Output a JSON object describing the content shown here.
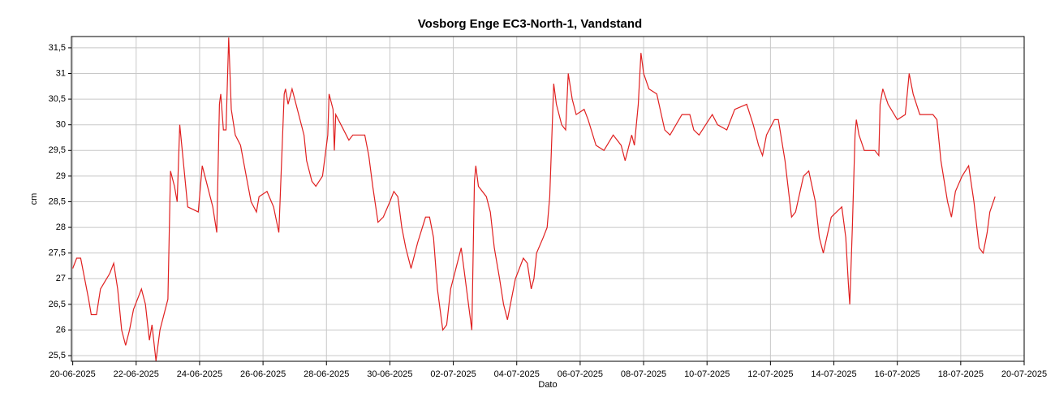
{
  "chart_data": {
    "type": "line",
    "title": "Vosborg Enge EC3-North-1, Vandstand",
    "x_label": "Dato",
    "y_label": "cm",
    "x": [
      "2025-06-20T00:00",
      "2025-06-20T03:00",
      "2025-06-20T06:00",
      "2025-06-20T12:00",
      "2025-06-20T14:00",
      "2025-06-20T18:00",
      "2025-06-20T21:00",
      "2025-06-21T04:00",
      "2025-06-21T07:00",
      "2025-06-21T10:00",
      "2025-06-21T13:00",
      "2025-06-21T16:00",
      "2025-06-21T19:00",
      "2025-06-21T22:00",
      "2025-06-22T04:00",
      "2025-06-22T07:00",
      "2025-06-22T10:00",
      "2025-06-22T12:00",
      "2025-06-22T15:00",
      "2025-06-22T18:00",
      "2025-06-23T00:00",
      "2025-06-23T02:00",
      "2025-06-23T05:00",
      "2025-06-23T07:00",
      "2025-06-23T09:00",
      "2025-06-23T12:00",
      "2025-06-23T15:00",
      "2025-06-23T23:00",
      "2025-06-24T02:00",
      "2025-06-24T05:00",
      "2025-06-24T10:00",
      "2025-06-24T13:00",
      "2025-06-24T15:00",
      "2025-06-24T16:00",
      "2025-06-24T18:00",
      "2025-06-24T20:00",
      "2025-06-24T22:00",
      "2025-06-25T00:00",
      "2025-06-25T03:00",
      "2025-06-25T07:00",
      "2025-06-25T12:00",
      "2025-06-25T15:00",
      "2025-06-25T19:00",
      "2025-06-25T21:00",
      "2025-06-26T03:00",
      "2025-06-26T08:00",
      "2025-06-26T12:00",
      "2025-06-26T16:00",
      "2025-06-26T17:00",
      "2025-06-26T19:00",
      "2025-06-26T22:00",
      "2025-06-27T04:00",
      "2025-06-27T07:00",
      "2025-06-27T09:00",
      "2025-06-27T13:00",
      "2025-06-27T16:00",
      "2025-06-27T21:00",
      "2025-06-28T01:00",
      "2025-06-28T02:00",
      "2025-06-28T05:00",
      "2025-06-28T06:00",
      "2025-06-28T07:00",
      "2025-06-28T11:00",
      "2025-06-28T17:00",
      "2025-06-28T20:00",
      "2025-06-29T05:00",
      "2025-06-29T08:00",
      "2025-06-29T11:00",
      "2025-06-29T15:00",
      "2025-06-29T19:00",
      "2025-06-30T00:00",
      "2025-06-30T03:00",
      "2025-06-30T06:00",
      "2025-06-30T09:00",
      "2025-06-30T12:00",
      "2025-06-30T16:00",
      "2025-06-30T21:00",
      "2025-07-01T03:00",
      "2025-07-01T06:00",
      "2025-07-01T09:00",
      "2025-07-01T12:00",
      "2025-07-01T16:00",
      "2025-07-01T19:00",
      "2025-07-01T22:00",
      "2025-07-02T01:00",
      "2025-07-02T06:00",
      "2025-07-02T08:00",
      "2025-07-02T12:00",
      "2025-07-02T14:00",
      "2025-07-02T16:00",
      "2025-07-02T17:00",
      "2025-07-02T19:00",
      "2025-07-03T01:00",
      "2025-07-03T04:00",
      "2025-07-03T07:00",
      "2025-07-03T11:00",
      "2025-07-03T14:00",
      "2025-07-03T17:00",
      "2025-07-03T20:00",
      "2025-07-03T23:00",
      "2025-07-04T05:00",
      "2025-07-04T08:00",
      "2025-07-04T11:00",
      "2025-07-04T13:00",
      "2025-07-04T15:00",
      "2025-07-04T20:00",
      "2025-07-04T23:00",
      "2025-07-05T01:00",
      "2025-07-05T04:00",
      "2025-07-05T06:00",
      "2025-07-05T10:00",
      "2025-07-05T13:00",
      "2025-07-05T15:00",
      "2025-07-05T18:00",
      "2025-07-05T21:00",
      "2025-07-06T03:00",
      "2025-07-06T06:00",
      "2025-07-06T12:00",
      "2025-07-06T18:00",
      "2025-07-07T01:00",
      "2025-07-07T07:00",
      "2025-07-07T10:00",
      "2025-07-07T15:00",
      "2025-07-07T17:00",
      "2025-07-07T20:00",
      "2025-07-07T22:00",
      "2025-07-08T00:00",
      "2025-07-08T04:00",
      "2025-07-08T10:00",
      "2025-07-08T16:00",
      "2025-07-08T20:00",
      "2025-07-09T05:00",
      "2025-07-09T11:00",
      "2025-07-09T14:00",
      "2025-07-09T18:00",
      "2025-07-10T04:00",
      "2025-07-10T08:00",
      "2025-07-10T15:00",
      "2025-07-10T21:00",
      "2025-07-11T06:00",
      "2025-07-11T11:00",
      "2025-07-11T15:00",
      "2025-07-11T18:00",
      "2025-07-11T21:00",
      "2025-07-12T03:00",
      "2025-07-12T06:00",
      "2025-07-12T11:00",
      "2025-07-12T16:00",
      "2025-07-12T19:00",
      "2025-07-13T01:00",
      "2025-07-13T05:00",
      "2025-07-13T10:00",
      "2025-07-13T13:00",
      "2025-07-13T16:00",
      "2025-07-13T22:00",
      "2025-07-14T06:00",
      "2025-07-14T09:00",
      "2025-07-14T11:00",
      "2025-07-14T12:00",
      "2025-07-14T14:00",
      "2025-07-14T16:00",
      "2025-07-14T17:00",
      "2025-07-14T19:00",
      "2025-07-14T23:00",
      "2025-07-15T07:00",
      "2025-07-15T10:00",
      "2025-07-15T11:00",
      "2025-07-15T13:00",
      "2025-07-15T17:00",
      "2025-07-16T00:00",
      "2025-07-16T06:00",
      "2025-07-16T09:00",
      "2025-07-16T12:00",
      "2025-07-16T17:00",
      "2025-07-17T03:00",
      "2025-07-17T06:00",
      "2025-07-17T09:00",
      "2025-07-17T14:00",
      "2025-07-17T17:00",
      "2025-07-17T20:00",
      "2025-07-18T01:00",
      "2025-07-18T06:00",
      "2025-07-18T10:00",
      "2025-07-18T14:00",
      "2025-07-18T17:00",
      "2025-07-18T20:00",
      "2025-07-18T22:00",
      "2025-07-19T02:00"
    ],
    "series": [
      {
        "name": "Vandstand",
        "color": "#e02020",
        "values": [
          27.2,
          27.4,
          27.4,
          26.6,
          26.3,
          26.3,
          26.8,
          27.1,
          27.3,
          26.8,
          26.0,
          25.7,
          26.0,
          26.4,
          26.8,
          26.5,
          25.8,
          26.1,
          25.4,
          26.0,
          26.6,
          29.1,
          28.8,
          28.5,
          30.0,
          29.2,
          28.4,
          28.3,
          29.2,
          28.9,
          28.4,
          27.9,
          30.4,
          30.6,
          29.9,
          29.9,
          31.7,
          30.3,
          29.8,
          29.6,
          28.9,
          28.5,
          28.3,
          28.6,
          28.7,
          28.4,
          27.9,
          30.6,
          30.7,
          30.4,
          30.7,
          30.1,
          29.8,
          29.3,
          28.9,
          28.8,
          29.0,
          29.8,
          30.6,
          30.3,
          29.5,
          30.2,
          30.0,
          29.7,
          29.8,
          29.8,
          29.4,
          28.8,
          28.1,
          28.2,
          28.5,
          28.7,
          28.6,
          28.0,
          27.6,
          27.2,
          27.7,
          28.2,
          28.2,
          27.8,
          26.8,
          26.0,
          26.1,
          26.8,
          27.1,
          27.6,
          27.2,
          26.4,
          26.0,
          28.9,
          29.2,
          28.8,
          28.6,
          28.3,
          27.6,
          27.0,
          26.5,
          26.2,
          26.6,
          27.0,
          27.4,
          27.3,
          26.8,
          27.0,
          27.5,
          27.8,
          28.0,
          28.6,
          30.8,
          30.4,
          30.0,
          29.9,
          31.0,
          30.5,
          30.2,
          30.3,
          30.1,
          29.6,
          29.5,
          29.8,
          29.6,
          29.3,
          29.8,
          29.6,
          30.4,
          31.4,
          31.0,
          30.7,
          30.6,
          29.9,
          29.8,
          30.2,
          30.2,
          29.9,
          29.8,
          30.2,
          30.0,
          29.9,
          30.3,
          30.4,
          30.0,
          29.6,
          29.4,
          29.8,
          30.1,
          30.1,
          29.3,
          28.2,
          28.3,
          29.0,
          29.1,
          28.5,
          27.8,
          27.5,
          28.2,
          28.4,
          27.8,
          26.9,
          26.5,
          28.0,
          29.8,
          30.1,
          29.8,
          29.5,
          29.5,
          29.4,
          30.4,
          30.7,
          30.4,
          30.1,
          30.2,
          31.0,
          30.6,
          30.2,
          30.2,
          30.1,
          29.3,
          28.5,
          28.2,
          28.7,
          29.0,
          29.2,
          28.5,
          27.6,
          27.5,
          27.9,
          28.3,
          28.6
        ]
      }
    ],
    "xlim": [
      "2025-06-19T23:00",
      "2025-07-20T00:00"
    ],
    "xticks": [
      {
        "value": "2025-06-20T00:00",
        "label": "20-06-2025"
      },
      {
        "value": "2025-06-22T00:00",
        "label": "22-06-2025"
      },
      {
        "value": "2025-06-24T00:00",
        "label": "24-06-2025"
      },
      {
        "value": "2025-06-26T00:00",
        "label": "26-06-2025"
      },
      {
        "value": "2025-06-28T00:00",
        "label": "28-06-2025"
      },
      {
        "value": "2025-06-30T00:00",
        "label": "30-06-2025"
      },
      {
        "value": "2025-07-02T00:00",
        "label": "02-07-2025"
      },
      {
        "value": "2025-07-04T00:00",
        "label": "04-07-2025"
      },
      {
        "value": "2025-07-06T00:00",
        "label": "06-07-2025"
      },
      {
        "value": "2025-07-08T00:00",
        "label": "08-07-2025"
      },
      {
        "value": "2025-07-10T00:00",
        "label": "10-07-2025"
      },
      {
        "value": "2025-07-12T00:00",
        "label": "12-07-2025"
      },
      {
        "value": "2025-07-14T00:00",
        "label": "14-07-2025"
      },
      {
        "value": "2025-07-16T00:00",
        "label": "16-07-2025"
      },
      {
        "value": "2025-07-18T00:00",
        "label": "18-07-2025"
      },
      {
        "value": "2025-07-20T00:00",
        "label": "20-07-2025"
      }
    ],
    "ylim": [
      25.39,
      31.72
    ],
    "yticks": [
      {
        "value": 25.5,
        "label": "25,5"
      },
      26,
      {
        "value": 26.5,
        "label": "26,5"
      },
      27,
      {
        "value": 27.5,
        "label": "27,5"
      },
      28,
      {
        "value": 28.5,
        "label": "28,5"
      },
      29,
      {
        "value": 29.5,
        "label": "29,5"
      },
      30,
      {
        "value": 30.5,
        "label": "30,5"
      },
      31,
      {
        "value": 31.5,
        "label": "31,5"
      }
    ],
    "grid": true
  }
}
